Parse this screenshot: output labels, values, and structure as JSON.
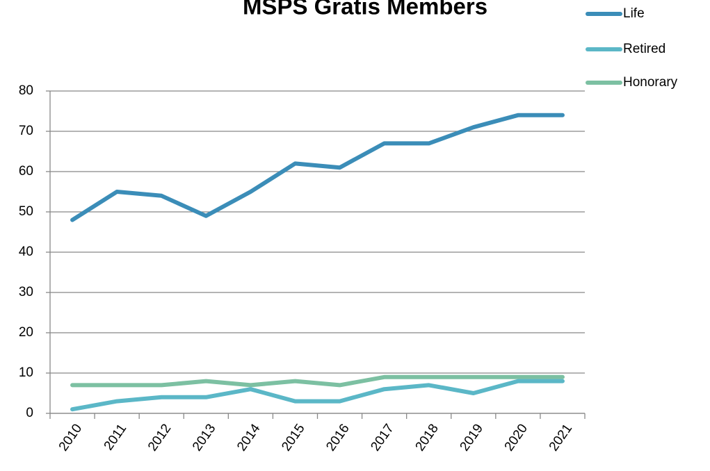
{
  "chart_data": {
    "type": "line",
    "title": "MSPS Gratis Members",
    "categories": [
      "2010",
      "2011",
      "2012",
      "2013",
      "2014",
      "2015",
      "2016",
      "2017",
      "2018",
      "2019",
      "2020",
      "2021"
    ],
    "series": [
      {
        "name": "Life",
        "color": "#3b8db8",
        "values": [
          48,
          55,
          54,
          49,
          55,
          62,
          61,
          67,
          67,
          71,
          74,
          74
        ]
      },
      {
        "name": "Retired",
        "color": "#5bb7c7",
        "values": [
          1,
          3,
          4,
          4,
          6,
          3,
          3,
          6,
          7,
          5,
          8,
          8
        ]
      },
      {
        "name": "Honorary",
        "color": "#7cc0a2",
        "values": [
          7,
          7,
          7,
          8,
          7,
          8,
          7,
          9,
          9,
          9,
          9,
          9
        ]
      }
    ],
    "ylim": [
      0,
      80
    ],
    "yticks": [
      0,
      10,
      20,
      30,
      40,
      50,
      60,
      70,
      80
    ],
    "grid": true,
    "legend": "top-right"
  }
}
